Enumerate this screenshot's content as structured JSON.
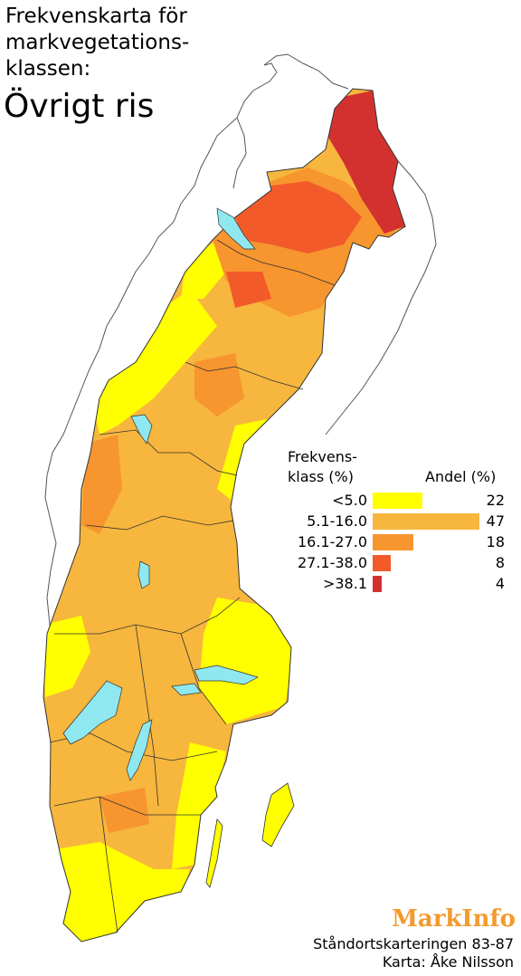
{
  "title": {
    "line1": "Frekvenskarta för",
    "line2": "markvegetations-",
    "line3": "klassen:",
    "main": "Övrigt ris"
  },
  "legend": {
    "heading_left_1": "Frekvens-",
    "heading_left_2": "klass (%)",
    "heading_right": "Andel (%)",
    "classes": [
      {
        "label": "<5.0",
        "share": 22,
        "color": "#ffff00"
      },
      {
        "label": "5.1-16.0",
        "share": 47,
        "color": "#f7b63d"
      },
      {
        "label": "16.1-27.0",
        "share": 18,
        "color": "#f7952f"
      },
      {
        "label": "27.1-38.0",
        "share": 8,
        "color": "#f25a2a"
      },
      {
        "label": ">38.1",
        "share": 4,
        "color": "#d3312f"
      }
    ]
  },
  "footer": {
    "brand": "MarkInfo",
    "line1": "Ståndortskarteringen 83-87",
    "line2": "Karta: Åke Nilsson"
  },
  "colors": {
    "lake": "#8fe8f0",
    "border": "#333333",
    "outline": "#555555"
  }
}
